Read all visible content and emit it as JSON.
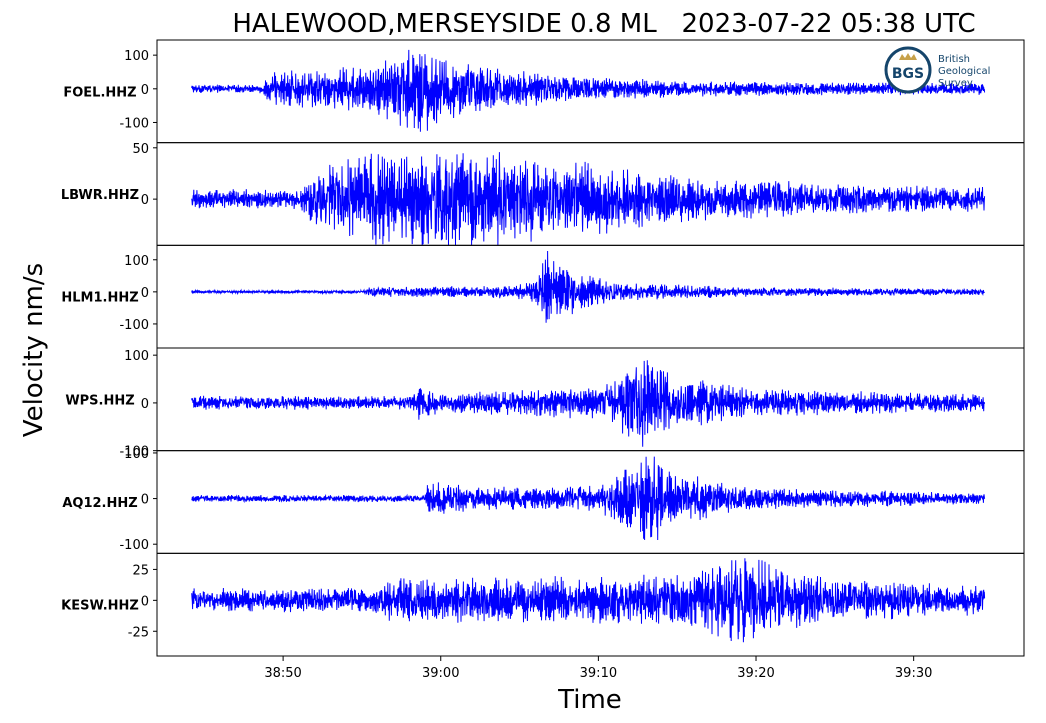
{
  "chart_data": {
    "type": "line",
    "title": "HALEWOOD,MERSEYSIDE 0.8 ML   2023-07-22 05:38 UTC",
    "xlabel": "Time",
    "ylabel": "Velocity nm/s",
    "x_ticks": [
      "38:50",
      "39:00",
      "39:10",
      "39:20",
      "39:30"
    ],
    "x_tick_seconds": [
      50,
      60,
      70,
      80,
      90
    ],
    "xlim_seconds": [
      42,
      97
    ],
    "trace_range_seconds": [
      44.2,
      94.5
    ],
    "line_color": "#0000ff",
    "logo": {
      "abbr": "BGS",
      "name": [
        "British",
        "Geological",
        "Survey"
      ],
      "color": "#15456b",
      "accent": "#c7a14a"
    },
    "series": [
      {
        "name": "FOEL.HHZ",
        "ylim": [
          -160,
          145
        ],
        "yticks": [
          100,
          0,
          -100
        ],
        "ytick_labels": [
          "100",
          "0",
          "-100"
        ],
        "env": [
          [
            44.2,
            12
          ],
          [
            48.5,
            12
          ],
          [
            49.5,
            55
          ],
          [
            52,
            60
          ],
          [
            55,
            70
          ],
          [
            57,
            110
          ],
          [
            58.5,
            150
          ],
          [
            60,
            100
          ],
          [
            63,
            70
          ],
          [
            68,
            40
          ],
          [
            75,
            25
          ],
          [
            85,
            20
          ],
          [
            94.5,
            18
          ]
        ]
      },
      {
        "name": "LBWR.HHZ",
        "ylim": [
          -45,
          55
        ],
        "yticks": [
          50,
          0
        ],
        "ytick_labels": [
          "50",
          "0"
        ],
        "env": [
          [
            44.2,
            10
          ],
          [
            51,
            10
          ],
          [
            52.5,
            38
          ],
          [
            55,
            45
          ],
          [
            60,
            50
          ],
          [
            65,
            45
          ],
          [
            70,
            35
          ],
          [
            75,
            25
          ],
          [
            85,
            15
          ],
          [
            94.5,
            12
          ]
        ]
      },
      {
        "name": "HLM1.HHZ",
        "ylim": [
          -175,
          145
        ],
        "yticks": [
          100,
          0,
          -100
        ],
        "ytick_labels": [
          "100",
          "0",
          "-100"
        ],
        "env": [
          [
            44.2,
            5
          ],
          [
            55,
            5
          ],
          [
            55.5,
            15
          ],
          [
            64,
            20
          ],
          [
            66,
            35
          ],
          [
            66.5,
            160
          ],
          [
            68,
            80
          ],
          [
            71,
            30
          ],
          [
            80,
            15
          ],
          [
            94.5,
            10
          ]
        ]
      },
      {
        "name": "WPS.HHZ",
        "ylim": [
          -100,
          115
        ],
        "yticks": [
          100,
          0,
          -100
        ],
        "ytick_labels": [
          "100",
          "0",
          "-100"
        ],
        "env": [
          [
            44.2,
            15
          ],
          [
            58,
            15
          ],
          [
            58.5,
            40
          ],
          [
            60,
            20
          ],
          [
            70,
            35
          ],
          [
            73,
            105
          ],
          [
            75,
            60
          ],
          [
            80,
            30
          ],
          [
            94.5,
            18
          ]
        ]
      },
      {
        "name": "AQ12.HHZ",
        "ylim": [
          -120,
          105
        ],
        "yticks": [
          100,
          0,
          -100
        ],
        "ytick_labels": [
          "100",
          "0",
          "-100"
        ],
        "env": [
          [
            44.2,
            8
          ],
          [
            59,
            8
          ],
          [
            59.2,
            45
          ],
          [
            62,
            25
          ],
          [
            70,
            30
          ],
          [
            73.5,
            115
          ],
          [
            75,
            60
          ],
          [
            80,
            25
          ],
          [
            94.5,
            12
          ]
        ]
      },
      {
        "name": "KESW.HHZ",
        "ylim": [
          -45,
          38
        ],
        "yticks": [
          25,
          0,
          -25
        ],
        "ytick_labels": [
          "25",
          "0",
          "-25"
        ],
        "env": [
          [
            44.2,
            10
          ],
          [
            55,
            10
          ],
          [
            57,
            18
          ],
          [
            70,
            20
          ],
          [
            76,
            22
          ],
          [
            79,
            40
          ],
          [
            81,
            30
          ],
          [
            85,
            18
          ],
          [
            94.5,
            12
          ]
        ]
      }
    ]
  }
}
